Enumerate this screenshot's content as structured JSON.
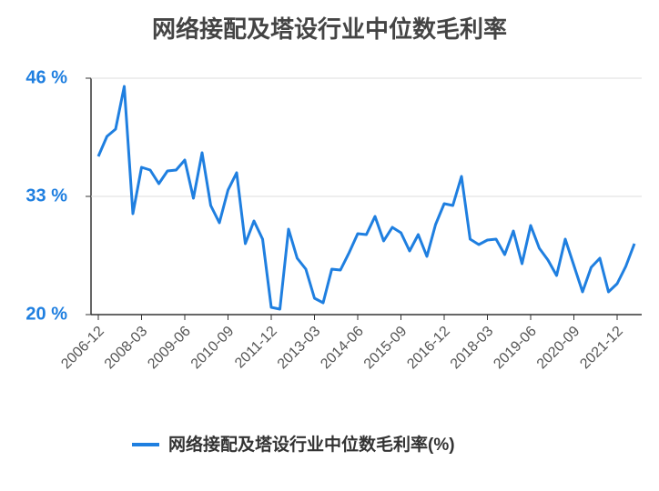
{
  "chart_data": {
    "type": "line",
    "title": "网络接配及塔设行业中位数毛利率",
    "categories": [
      "2006-12",
      null,
      null,
      null,
      null,
      "2008-03",
      null,
      null,
      null,
      null,
      "2009-06",
      null,
      null,
      null,
      null,
      "2010-09",
      null,
      null,
      null,
      null,
      "2011-12",
      null,
      null,
      null,
      null,
      "2013-03",
      null,
      null,
      null,
      null,
      "2014-06",
      null,
      null,
      null,
      null,
      "2015-09",
      null,
      null,
      null,
      null,
      "2016-12",
      null,
      null,
      null,
      null,
      "2018-03",
      null,
      null,
      null,
      null,
      "2019-06",
      null,
      null,
      null,
      null,
      "2020-09",
      null,
      null,
      null,
      null,
      "2021-12",
      null,
      null
    ],
    "series": [
      {
        "name": "网络接配及塔设行业中位数毛利率(%)",
        "color": "#1f7fe0",
        "values": [
          37.4,
          39.6,
          40.4,
          45.1,
          31.1,
          36.2,
          35.9,
          34.4,
          35.8,
          35.9,
          37.0,
          32.8,
          37.8,
          32.0,
          30.1,
          33.7,
          35.6,
          27.8,
          30.3,
          28.3,
          20.8,
          20.6,
          29.4,
          26.2,
          25.0,
          21.8,
          21.3,
          25.0,
          24.9,
          26.8,
          28.9,
          28.8,
          30.8,
          28.1,
          29.6,
          29.0,
          27.0,
          28.8,
          26.4,
          29.9,
          32.2,
          32.0,
          35.2,
          28.3,
          27.7,
          28.2,
          28.3,
          26.6,
          29.2,
          25.6,
          29.8,
          27.3,
          26.0,
          24.3,
          28.3,
          25.4,
          22.5,
          25.2,
          26.2,
          22.5,
          23.4,
          25.3,
          27.8
        ]
      }
    ],
    "ylim": [
      20,
      46
    ],
    "yticks": [
      {
        "value": 20,
        "label": "20 %"
      },
      {
        "value": 33,
        "label": "33 %"
      },
      {
        "value": 46,
        "label": "46 %"
      }
    ],
    "grid": true
  }
}
